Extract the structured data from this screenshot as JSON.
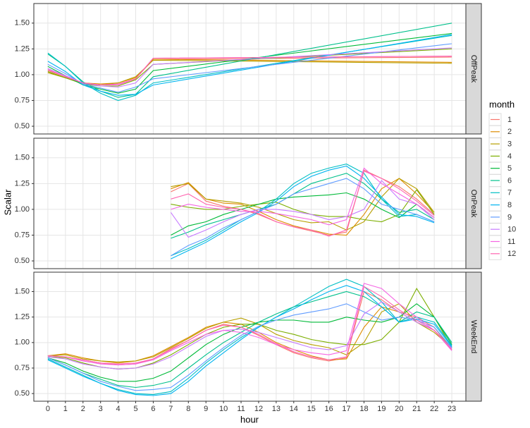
{
  "chart_data": {
    "type": "line",
    "xlabel": "hour",
    "ylabel": "Scalar",
    "legend_title": "month",
    "xlim": [
      -0.8,
      23.8
    ],
    "xticks": [
      0,
      1,
      2,
      3,
      4,
      5,
      6,
      7,
      8,
      9,
      10,
      11,
      12,
      13,
      14,
      15,
      16,
      17,
      18,
      19,
      20,
      21,
      22,
      23
    ],
    "ylim": [
      0.425,
      1.69
    ],
    "yticks": [
      {
        "value": 0.5,
        "label": "0.50"
      },
      0.75,
      {
        "value": 1.0,
        "label": "1.00"
      },
      1.25,
      {
        "value": 1.5,
        "label": "1.50"
      }
    ],
    "grid": true,
    "series": [
      {
        "name": "1",
        "color": "#F8766D"
      },
      {
        "name": "2",
        "color": "#DE8C00"
      },
      {
        "name": "3",
        "color": "#B79F00"
      },
      {
        "name": "4",
        "color": "#7CAE00"
      },
      {
        "name": "5",
        "color": "#00BA38"
      },
      {
        "name": "6",
        "color": "#00C08B"
      },
      {
        "name": "7",
        "color": "#00BFC4"
      },
      {
        "name": "8",
        "color": "#00B4F0"
      },
      {
        "name": "9",
        "color": "#619CFF"
      },
      {
        "name": "10",
        "color": "#C77CFF"
      },
      {
        "name": "11",
        "color": "#F564E3"
      },
      {
        "name": "12",
        "color": "#FF64B0"
      }
    ],
    "facets": [
      {
        "label": "OffPeak",
        "x": [
          0,
          1,
          2,
          3,
          4,
          5,
          6,
          23
        ],
        "values": [
          [
            1.04,
            0.98,
            0.92,
            0.9,
            0.9,
            0.96,
            1.15,
            1.17
          ],
          [
            1.02,
            0.97,
            0.92,
            0.91,
            0.92,
            0.97,
            1.15,
            1.12
          ],
          [
            1.02,
            0.97,
            0.92,
            0.9,
            0.92,
            0.98,
            1.14,
            1.11
          ],
          [
            1.03,
            0.97,
            0.91,
            0.89,
            0.89,
            0.95,
            1.1,
            1.25
          ],
          [
            1.08,
            0.99,
            0.9,
            0.86,
            0.82,
            0.86,
            1.04,
            1.4
          ],
          [
            1.2,
            1.08,
            0.93,
            0.84,
            0.78,
            0.81,
            0.98,
            1.5
          ],
          [
            1.21,
            1.08,
            0.92,
            0.82,
            0.75,
            0.8,
            0.92,
            1.38
          ],
          [
            1.13,
            1.03,
            0.9,
            0.84,
            0.8,
            0.81,
            0.9,
            1.39
          ],
          [
            1.1,
            1.01,
            0.91,
            0.87,
            0.83,
            0.88,
            0.96,
            1.3
          ],
          [
            1.06,
            0.99,
            0.92,
            0.89,
            0.88,
            0.92,
            1.1,
            1.26
          ],
          [
            1.05,
            0.98,
            0.92,
            0.9,
            0.9,
            0.96,
            1.16,
            1.18
          ],
          [
            1.05,
            0.98,
            0.92,
            0.9,
            0.91,
            0.96,
            1.16,
            1.18
          ]
        ]
      },
      {
        "label": "OnPeak",
        "x": [
          7,
          8,
          9,
          10,
          11,
          12,
          13,
          14,
          15,
          16,
          17,
          18,
          19,
          20,
          21,
          22
        ],
        "values": [
          [
            1.17,
            1.25,
            1.08,
            1.03,
            1.0,
            0.95,
            0.88,
            0.83,
            0.79,
            0.75,
            0.78,
            1.38,
            1.3,
            1.22,
            1.1,
            0.95
          ],
          [
            1.2,
            1.26,
            1.1,
            1.06,
            1.05,
            0.98,
            0.9,
            0.84,
            0.8,
            0.76,
            0.75,
            0.95,
            1.2,
            1.3,
            1.15,
            0.97
          ],
          [
            1.22,
            1.25,
            1.1,
            1.08,
            1.06,
            1.02,
            0.96,
            0.9,
            0.87,
            0.88,
            0.8,
            0.88,
            1.12,
            1.3,
            1.2,
            0.97
          ],
          [
            1.05,
            1.02,
            1.0,
            1.0,
            1.03,
            1.05,
            1.07,
            1.0,
            0.95,
            0.93,
            0.93,
            0.9,
            0.88,
            0.95,
            1.19,
            0.95
          ],
          [
            0.75,
            0.84,
            0.88,
            0.95,
            1.0,
            1.05,
            1.1,
            1.12,
            1.13,
            1.14,
            1.16,
            1.1,
            1.0,
            0.92,
            1.05,
            0.92
          ],
          [
            0.72,
            0.78,
            0.85,
            0.9,
            0.95,
            1.0,
            1.05,
            1.15,
            1.25,
            1.3,
            1.35,
            1.25,
            1.1,
            0.97,
            1.0,
            0.9
          ],
          [
            0.55,
            0.62,
            0.7,
            0.8,
            0.9,
            0.98,
            1.1,
            1.25,
            1.35,
            1.4,
            1.44,
            1.35,
            1.1,
            0.93,
            0.95,
            0.88
          ],
          [
            0.52,
            0.6,
            0.68,
            0.78,
            0.88,
            0.97,
            1.08,
            1.22,
            1.32,
            1.38,
            1.42,
            1.3,
            1.12,
            0.95,
            0.93,
            0.87
          ],
          [
            0.55,
            0.65,
            0.72,
            0.82,
            0.9,
            0.98,
            1.05,
            1.15,
            1.2,
            1.25,
            1.3,
            1.2,
            1.05,
            1.0,
            0.95,
            0.88
          ],
          [
            0.97,
            0.73,
            0.8,
            0.88,
            0.95,
            1.0,
            1.0,
            0.98,
            0.95,
            0.9,
            0.93,
            1.0,
            1.28,
            1.1,
            1.05,
            0.9
          ],
          [
            1.0,
            1.05,
            1.02,
            1.0,
            0.98,
            0.98,
            0.96,
            0.93,
            0.9,
            0.85,
            0.9,
            1.4,
            1.25,
            1.15,
            1.05,
            0.92
          ],
          [
            1.1,
            1.15,
            1.05,
            1.02,
            1.0,
            0.96,
            0.88,
            0.83,
            0.8,
            0.74,
            0.8,
            1.37,
            1.3,
            1.2,
            1.08,
            0.94
          ]
        ]
      },
      {
        "label": "WeekEnd",
        "x": [
          0,
          1,
          2,
          3,
          4,
          5,
          6,
          7,
          8,
          9,
          10,
          11,
          12,
          13,
          14,
          15,
          16,
          17,
          18,
          19,
          20,
          21,
          22,
          23
        ],
        "values": [
          [
            0.87,
            0.86,
            0.83,
            0.8,
            0.78,
            0.79,
            0.84,
            0.94,
            1.02,
            1.12,
            1.18,
            1.15,
            1.07,
            0.98,
            0.9,
            0.85,
            0.82,
            0.85,
            1.5,
            1.42,
            1.3,
            1.25,
            1.15,
            0.93
          ],
          [
            0.87,
            0.89,
            0.85,
            0.82,
            0.8,
            0.82,
            0.87,
            0.96,
            1.05,
            1.15,
            1.2,
            1.18,
            1.1,
            1.0,
            0.93,
            0.87,
            0.83,
            0.84,
            1.15,
            1.35,
            1.3,
            1.2,
            1.12,
            0.95
          ],
          [
            0.87,
            0.88,
            0.84,
            0.82,
            0.81,
            0.82,
            0.86,
            0.95,
            1.04,
            1.14,
            1.2,
            1.24,
            1.18,
            1.08,
            1.02,
            0.98,
            0.95,
            0.88,
            1.0,
            1.3,
            1.38,
            1.2,
            1.1,
            0.95
          ],
          [
            0.86,
            0.85,
            0.8,
            0.76,
            0.74,
            0.75,
            0.8,
            0.88,
            0.98,
            1.08,
            1.15,
            1.18,
            1.18,
            1.12,
            1.08,
            1.03,
            1.0,
            0.98,
            0.98,
            1.03,
            1.2,
            1.53,
            1.25,
            0.95
          ],
          [
            0.85,
            0.8,
            0.72,
            0.66,
            0.62,
            0.62,
            0.65,
            0.72,
            0.85,
            0.98,
            1.08,
            1.15,
            1.2,
            1.22,
            1.22,
            1.2,
            1.2,
            1.25,
            1.22,
            1.2,
            1.25,
            1.38,
            1.25,
            0.98
          ],
          [
            0.85,
            0.78,
            0.7,
            0.64,
            0.58,
            0.56,
            0.58,
            0.62,
            0.75,
            0.88,
            1.0,
            1.1,
            1.2,
            1.28,
            1.35,
            1.4,
            1.45,
            1.5,
            1.45,
            1.35,
            1.2,
            1.3,
            1.25,
            1.0
          ],
          [
            0.84,
            0.76,
            0.68,
            0.6,
            0.54,
            0.5,
            0.49,
            0.52,
            0.65,
            0.8,
            0.93,
            1.05,
            1.15,
            1.25,
            1.35,
            1.45,
            1.55,
            1.62,
            1.55,
            1.4,
            1.2,
            1.25,
            1.2,
            0.97
          ],
          [
            0.83,
            0.75,
            0.67,
            0.6,
            0.53,
            0.49,
            0.48,
            0.5,
            0.62,
            0.77,
            0.9,
            1.03,
            1.15,
            1.25,
            1.33,
            1.42,
            1.5,
            1.56,
            1.5,
            1.35,
            1.2,
            1.23,
            1.18,
            0.96
          ],
          [
            0.85,
            0.78,
            0.7,
            0.62,
            0.57,
            0.53,
            0.54,
            0.56,
            0.68,
            0.82,
            0.95,
            1.07,
            1.16,
            1.22,
            1.27,
            1.3,
            1.33,
            1.38,
            1.3,
            1.22,
            1.25,
            1.22,
            1.15,
            0.95
          ],
          [
            0.86,
            0.84,
            0.79,
            0.76,
            0.74,
            0.75,
            0.79,
            0.86,
            0.96,
            1.06,
            1.12,
            1.13,
            1.1,
            1.05,
            1.0,
            0.95,
            0.93,
            0.97,
            1.28,
            1.4,
            1.3,
            1.2,
            1.12,
            0.94
          ],
          [
            0.87,
            0.86,
            0.82,
            0.79,
            0.78,
            0.79,
            0.83,
            0.92,
            1.0,
            1.08,
            1.12,
            1.1,
            1.05,
            0.98,
            0.93,
            0.9,
            0.88,
            0.92,
            1.58,
            1.53,
            1.38,
            1.25,
            1.12,
            0.92
          ],
          [
            0.87,
            0.86,
            0.83,
            0.8,
            0.79,
            0.8,
            0.84,
            0.93,
            1.02,
            1.12,
            1.17,
            1.15,
            1.08,
            0.99,
            0.91,
            0.86,
            0.83,
            0.86,
            1.55,
            1.45,
            1.32,
            1.22,
            1.12,
            0.93
          ]
        ]
      }
    ]
  }
}
